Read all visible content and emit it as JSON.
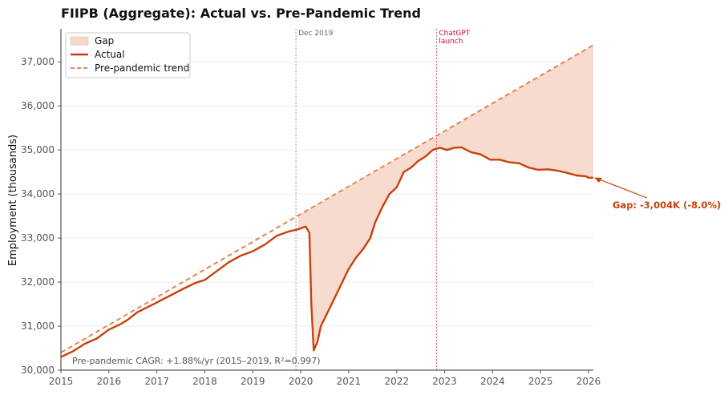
{
  "chart_data": {
    "type": "line",
    "title": "FIIPB (Aggregate): Actual vs. Pre-Pandemic Trend",
    "xlabel": "",
    "ylabel": "Employment (thousands)",
    "xlim": [
      2015.0,
      2026.1
    ],
    "ylim": [
      30000,
      37750
    ],
    "x_ticks": [
      2015,
      2016,
      2017,
      2018,
      2019,
      2020,
      2021,
      2022,
      2023,
      2024,
      2025,
      2026
    ],
    "x_tick_labels": [
      "2015",
      "2016",
      "2017",
      "2018",
      "2019",
      "2020",
      "2021",
      "2022",
      "2023",
      "2024",
      "2025",
      "2026"
    ],
    "y_ticks": [
      30000,
      31000,
      32000,
      33000,
      34000,
      35000,
      36000,
      37000
    ],
    "y_tick_labels": [
      "30,000",
      "31,000",
      "32,000",
      "33,000",
      "34,000",
      "35,000",
      "36,000",
      "37,000"
    ],
    "grid": "horizontal",
    "legend_position": "top-left",
    "series": [
      {
        "name": "Actual",
        "color": "#c8410b",
        "style": "solid",
        "points": [
          [
            2015.0,
            30300
          ],
          [
            2015.25,
            30430
          ],
          [
            2015.5,
            30600
          ],
          [
            2015.75,
            30720
          ],
          [
            2016.0,
            30920
          ],
          [
            2016.25,
            31050
          ],
          [
            2016.4,
            31150
          ],
          [
            2016.6,
            31320
          ],
          [
            2016.9,
            31480
          ],
          [
            2017.2,
            31650
          ],
          [
            2017.5,
            31820
          ],
          [
            2017.8,
            31980
          ],
          [
            2018.0,
            32050
          ],
          [
            2018.25,
            32250
          ],
          [
            2018.5,
            32450
          ],
          [
            2018.75,
            32600
          ],
          [
            2019.0,
            32700
          ],
          [
            2019.25,
            32850
          ],
          [
            2019.5,
            33050
          ],
          [
            2019.75,
            33150
          ],
          [
            2019.95,
            33200
          ],
          [
            2020.1,
            33260
          ],
          [
            2020.18,
            33120
          ],
          [
            2020.22,
            31500
          ],
          [
            2020.27,
            30450
          ],
          [
            2020.35,
            30650
          ],
          [
            2020.42,
            31000
          ],
          [
            2020.6,
            31400
          ],
          [
            2020.8,
            31850
          ],
          [
            2021.0,
            32300
          ],
          [
            2021.15,
            32550
          ],
          [
            2021.3,
            32750
          ],
          [
            2021.45,
            33000
          ],
          [
            2021.55,
            33350
          ],
          [
            2021.7,
            33700
          ],
          [
            2021.85,
            34000
          ],
          [
            2022.0,
            34150
          ],
          [
            2022.15,
            34500
          ],
          [
            2022.3,
            34600
          ],
          [
            2022.45,
            34750
          ],
          [
            2022.6,
            34850
          ],
          [
            2022.75,
            35000
          ],
          [
            2022.9,
            35050
          ],
          [
            2023.05,
            35000
          ],
          [
            2023.2,
            35050
          ],
          [
            2023.35,
            35060
          ],
          [
            2023.55,
            34950
          ],
          [
            2023.75,
            34900
          ],
          [
            2023.95,
            34780
          ],
          [
            2024.15,
            34780
          ],
          [
            2024.35,
            34720
          ],
          [
            2024.55,
            34700
          ],
          [
            2024.75,
            34600
          ],
          [
            2024.95,
            34550
          ],
          [
            2025.15,
            34560
          ],
          [
            2025.35,
            34530
          ],
          [
            2025.55,
            34480
          ],
          [
            2025.75,
            34420
          ],
          [
            2025.95,
            34400
          ],
          [
            2026.0,
            34370
          ],
          [
            2026.1,
            34370
          ]
        ]
      },
      {
        "name": "Pre-pandemic trend",
        "color": "#de7a45",
        "style": "dashed",
        "points": [
          [
            2015.0,
            30400
          ],
          [
            2026.1,
            37380
          ]
        ]
      }
    ],
    "fill": {
      "name": "Gap",
      "color": "#f7d9cb",
      "between": [
        "Actual",
        "Pre-pandemic trend"
      ],
      "from_x": 2019.95
    },
    "vlines": [
      {
        "x": 2019.9,
        "label": "Dec 2019",
        "color": "#999999",
        "label_color": "#666666"
      },
      {
        "x": 2022.83,
        "label_lines": [
          "ChatGPT",
          "launch"
        ],
        "color": "#e35b6a",
        "label_color": "#c8102e"
      }
    ],
    "annotations": [
      {
        "text": "Gap: -3,004K (-8.0%)",
        "color": "#c8410b",
        "point": [
          2026.1,
          34370
        ]
      },
      {
        "text": "Pre-pandemic CAGR: +1.88%/yr (2015–2019, R²=0.997)",
        "color": "#555555"
      }
    ],
    "legend": [
      "Gap",
      "Actual",
      "Pre-pandemic trend"
    ]
  }
}
